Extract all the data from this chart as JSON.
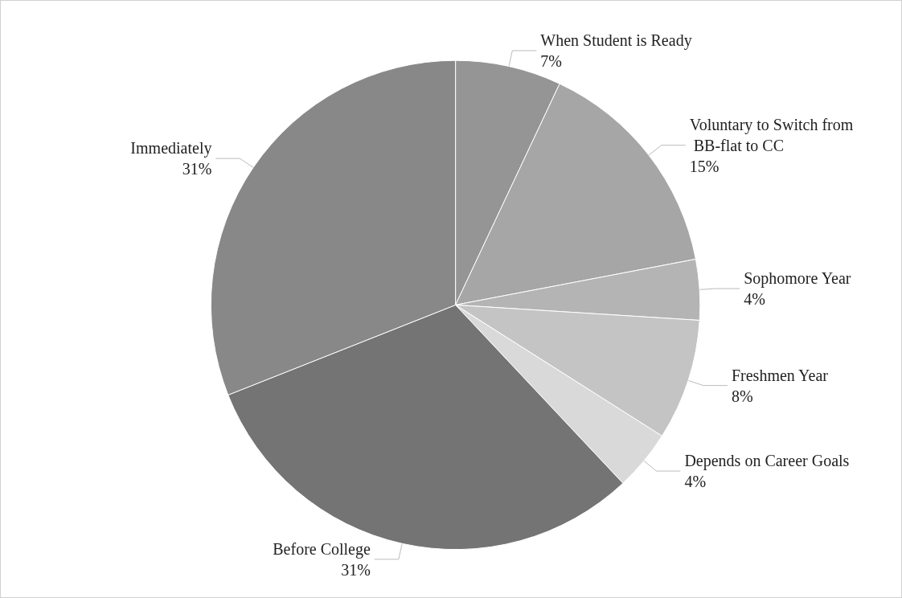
{
  "chart_data": {
    "type": "pie",
    "categories": [
      "When Student is Ready",
      "Voluntary to Switch from BB-flat to CC",
      "Sophomore Year",
      "Freshmen Year",
      "Depends on Career Goals",
      "Before College",
      "Immediately"
    ],
    "values": [
      7,
      15,
      4,
      8,
      4,
      31,
      31
    ],
    "value_labels": [
      "7%",
      "15%",
      "4%",
      "8%",
      "4%",
      "31%",
      "31%"
    ],
    "colors": [
      "#959595",
      "#a6a6a6",
      "#b4b4b4",
      "#c4c4c4",
      "#d9d9d9",
      "#747474",
      "#888888"
    ],
    "legend": false
  }
}
